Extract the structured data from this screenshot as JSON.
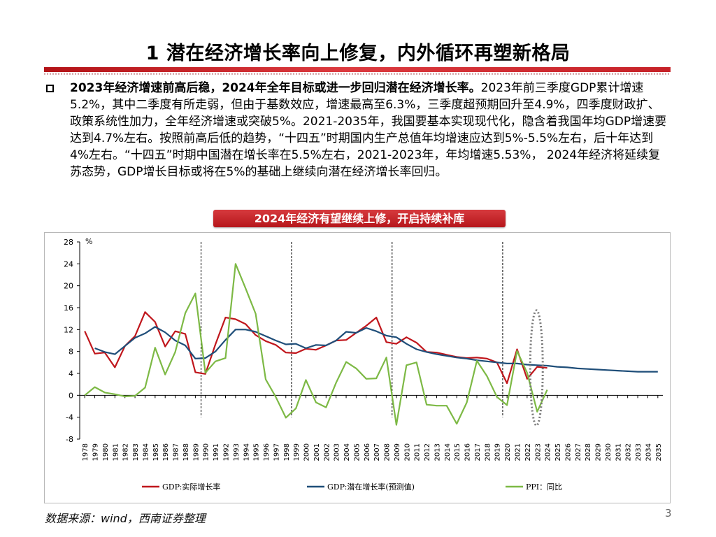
{
  "slide": {
    "title": "1 潜在经济增长率向上修复，内外循环再塑新格局",
    "bullet_lead": "2023年经济增速前高后稳，2024年全年目标或进一步回归潜在经济增长率。",
    "bullet_body": "2023年前三季度GDP累计增速5.2%，其中二季度有所走弱，但由于基数效应，增速最高至6.3%，三季度超预期回升至4.9%，四季度财政扩、政策系统性加力，全年经济增速或突破5%。2021-2035年，我国要基本实现现代化，隐含着我国年均GDP增速要达到4.7%左右。按照前高后低的趋势，“十四五”时期国内生产总值年均增速应达到5%-5.5%左右，后十年达到4%左右。“十四五”时期中国潜在增长率在5.5%左右，2021-2023年，年均增速5.53%， 2024年经济将延续复苏态势，GDP增长目标或将在5%的基础上继续向潜在经济增长率回归。",
    "chart_banner": "2024年经济有望继续上修，开启持续补库",
    "source": "数据来源：wind，西南证券整理",
    "page_number": "3"
  },
  "colors": {
    "accent_red": "#c0161c",
    "gdp_actual": "#c0161c",
    "gdp_potential": "#1f4e79",
    "ppi": "#7db945",
    "ellipse": "#777777"
  },
  "chart_data": {
    "type": "line",
    "y_unit": "%",
    "ylim": [
      -8,
      28
    ],
    "yticks": [
      -8,
      -4,
      0,
      4,
      8,
      12,
      16,
      20,
      24,
      28
    ],
    "x": [
      "1978",
      "1979",
      "1980",
      "1981",
      "1982",
      "1983",
      "1984",
      "1985",
      "1986",
      "1987",
      "1988",
      "1989",
      "1990",
      "1991",
      "1992",
      "1993",
      "1994",
      "1995",
      "1996",
      "1997",
      "1998",
      "1999",
      "2000",
      "2001",
      "2002",
      "2003",
      "2004",
      "2005",
      "2006",
      "2007",
      "2008",
      "2009",
      "2010",
      "2011",
      "2012",
      "2013",
      "2014",
      "2015",
      "2016",
      "2017",
      "2018",
      "2019",
      "2020",
      "2021",
      "2022",
      "2023",
      "2024",
      "2025",
      "2026",
      "2027",
      "2028",
      "2029",
      "2030",
      "2031",
      "2032",
      "2033",
      "2034",
      "2035"
    ],
    "series": [
      {
        "name": "GDP:实际增长率",
        "color": "#c0161c",
        "values": [
          11.7,
          7.6,
          7.8,
          5.1,
          9.0,
          10.8,
          15.2,
          13.4,
          8.9,
          11.7,
          11.2,
          4.2,
          3.9,
          9.3,
          14.2,
          13.9,
          13.0,
          11.0,
          9.9,
          9.2,
          7.8,
          7.7,
          8.5,
          8.3,
          9.1,
          10.0,
          10.1,
          11.4,
          12.7,
          14.2,
          9.7,
          9.4,
          10.6,
          9.6,
          7.9,
          7.8,
          7.4,
          7.0,
          6.8,
          6.9,
          6.7,
          6.0,
          2.2,
          8.4,
          3.0,
          5.2,
          5.0,
          null,
          null,
          null,
          null,
          null,
          null,
          null,
          null,
          null,
          null,
          null
        ]
      },
      {
        "name": "GDP:潜在增长率(预测值)",
        "color": "#1f4e79",
        "values": [
          null,
          8.6,
          7.9,
          7.5,
          9.0,
          10.5,
          11.3,
          12.5,
          11.5,
          10.0,
          9.1,
          6.7,
          6.8,
          8.0,
          10.1,
          12.0,
          12.0,
          11.6,
          10.8,
          10.0,
          9.3,
          9.4,
          8.6,
          9.2,
          9.1,
          10.0,
          11.6,
          11.4,
          12.3,
          11.7,
          10.9,
          10.6,
          9.4,
          8.4,
          7.9,
          7.5,
          7.2,
          6.9,
          6.7,
          6.4,
          6.2,
          6.0,
          5.8,
          5.8,
          5.6,
          5.5,
          5.4,
          5.2,
          5.1,
          4.9,
          4.8,
          4.7,
          4.6,
          4.5,
          4.4,
          4.3,
          4.3,
          4.3
        ]
      },
      {
        "name": "PPI：同比",
        "color": "#7db945",
        "values": [
          0.0,
          1.5,
          0.5,
          0.2,
          -0.2,
          -0.1,
          1.4,
          8.7,
          3.8,
          7.9,
          15.0,
          18.6,
          4.1,
          6.2,
          6.8,
          24.0,
          19.5,
          14.9,
          2.9,
          -0.3,
          -4.1,
          -2.4,
          2.8,
          -1.3,
          -2.2,
          2.3,
          6.1,
          4.9,
          3.0,
          3.1,
          6.9,
          -5.4,
          5.5,
          6.0,
          -1.7,
          -1.9,
          -1.9,
          -5.2,
          -1.3,
          6.3,
          3.5,
          -0.3,
          -1.8,
          8.1,
          4.1,
          -3.0,
          1.0,
          null,
          null,
          null,
          null,
          null,
          null,
          null,
          null,
          null,
          null,
          null
        ]
      }
    ],
    "dashed_verticals": [
      "1990",
      "1999",
      "2009",
      "2020"
    ],
    "highlight": {
      "shape": "dotted-ellipse",
      "year": "2023"
    },
    "legend": {
      "placement": "bottom"
    }
  }
}
